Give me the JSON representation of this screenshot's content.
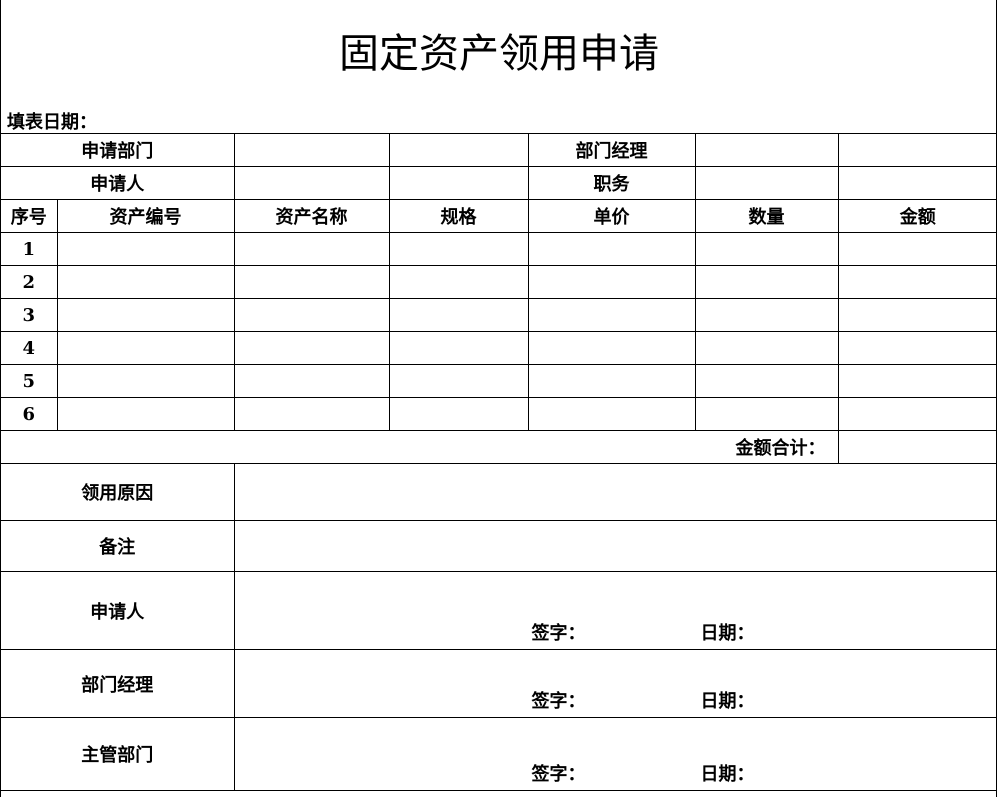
{
  "title": "固定资产领用申请",
  "fill_date_label": "填表日期：",
  "info": {
    "apply_dept": "申请部门",
    "dept_manager": "部门经理",
    "applicant": "申请人",
    "position": "职务"
  },
  "columns": [
    "序号",
    "资产编号",
    "资产名称",
    "规格",
    "单价",
    "数量",
    "金额"
  ],
  "rows": [
    "1",
    "2",
    "3",
    "4",
    "5",
    "6"
  ],
  "total_label": "金额合计：",
  "reason_label": "领用原因",
  "remark_label": "备注",
  "sign_rows": [
    {
      "label": "申请人",
      "sign": "签字：",
      "date": "日期："
    },
    {
      "label": "部门经理",
      "sign": "签字：",
      "date": "日期："
    },
    {
      "label": "主管部门",
      "sign": "签字：",
      "date": "日期："
    }
  ]
}
